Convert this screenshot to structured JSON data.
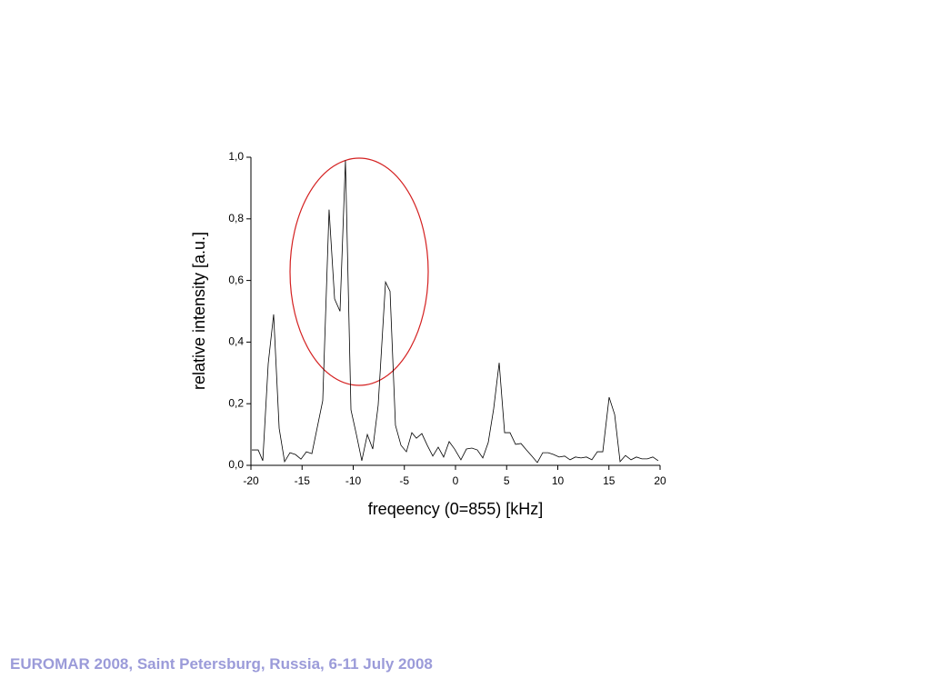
{
  "chart_data": {
    "type": "line",
    "xlabel": "freqeency (0=855) [kHz]",
    "ylabel": "relative intensity [a.u.]",
    "xlim": [
      -20,
      20
    ],
    "ylim": [
      0,
      1
    ],
    "xticks": [
      -20,
      -15,
      -10,
      -5,
      0,
      5,
      10,
      15,
      20
    ],
    "yticks": [
      {
        "value": 0,
        "label": "0,0"
      },
      {
        "value": 0.2,
        "label": "0,2"
      },
      {
        "value": 0.4,
        "label": "0,4"
      },
      {
        "value": 0.6,
        "label": "0,6"
      },
      {
        "value": 0.8,
        "label": "0,8"
      },
      {
        "value": 1,
        "label": "1,0"
      }
    ],
    "color": "#000000",
    "x": [
      -19.91,
      -19.29,
      -18.84,
      -18.31,
      -17.78,
      -17.24,
      -16.71,
      -16.18,
      -15.64,
      -15.11,
      -14.58,
      -14.04,
      -13.51,
      -12.98,
      -12.36,
      -11.82,
      -11.29,
      -10.76,
      -10.22,
      -9.69,
      -9.16,
      -8.62,
      -8.09,
      -7.56,
      -6.84,
      -6.4,
      -5.87,
      -5.33,
      -4.8,
      -4.27,
      -3.82,
      -3.29,
      -2.76,
      -2.22,
      -1.69,
      -1.16,
      -0.62,
      -0.09,
      0.53,
      1.07,
      1.6,
      2.13,
      2.67,
      3.2,
      3.73,
      4.27,
      4.8,
      5.33,
      5.87,
      6.4,
      6.93,
      7.47,
      8.0,
      8.53,
      9.07,
      9.6,
      10.13,
      10.67,
      11.2,
      11.73,
      12.27,
      12.8,
      13.33,
      13.87,
      14.4,
      15.02,
      15.56,
      16.09,
      16.62,
      17.16,
      17.69,
      18.22,
      18.76,
      19.29,
      19.82
    ],
    "values": [
      0.05,
      0.05,
      0.015,
      0.33,
      0.49,
      0.12,
      0.012,
      0.041,
      0.035,
      0.02,
      0.044,
      0.038,
      0.124,
      0.21,
      0.83,
      0.54,
      0.5,
      0.99,
      0.18,
      0.1,
      0.015,
      0.1,
      0.053,
      0.195,
      0.595,
      0.565,
      0.13,
      0.065,
      0.044,
      0.106,
      0.088,
      0.103,
      0.065,
      0.03,
      0.059,
      0.027,
      0.077,
      0.053,
      0.018,
      0.053,
      0.056,
      0.05,
      0.024,
      0.074,
      0.183,
      0.333,
      0.106,
      0.106,
      0.068,
      0.071,
      0.05,
      0.03,
      0.009,
      0.041,
      0.041,
      0.035,
      0.027,
      0.03,
      0.018,
      0.027,
      0.024,
      0.027,
      0.018,
      0.044,
      0.044,
      0.221,
      0.165,
      0.012,
      0.032,
      0.018,
      0.027,
      0.021,
      0.021,
      0.027,
      0.015
    ]
  },
  "footer": "EUROMAR 2008, Saint Petersburg, Russia, 6-11 July 2008"
}
